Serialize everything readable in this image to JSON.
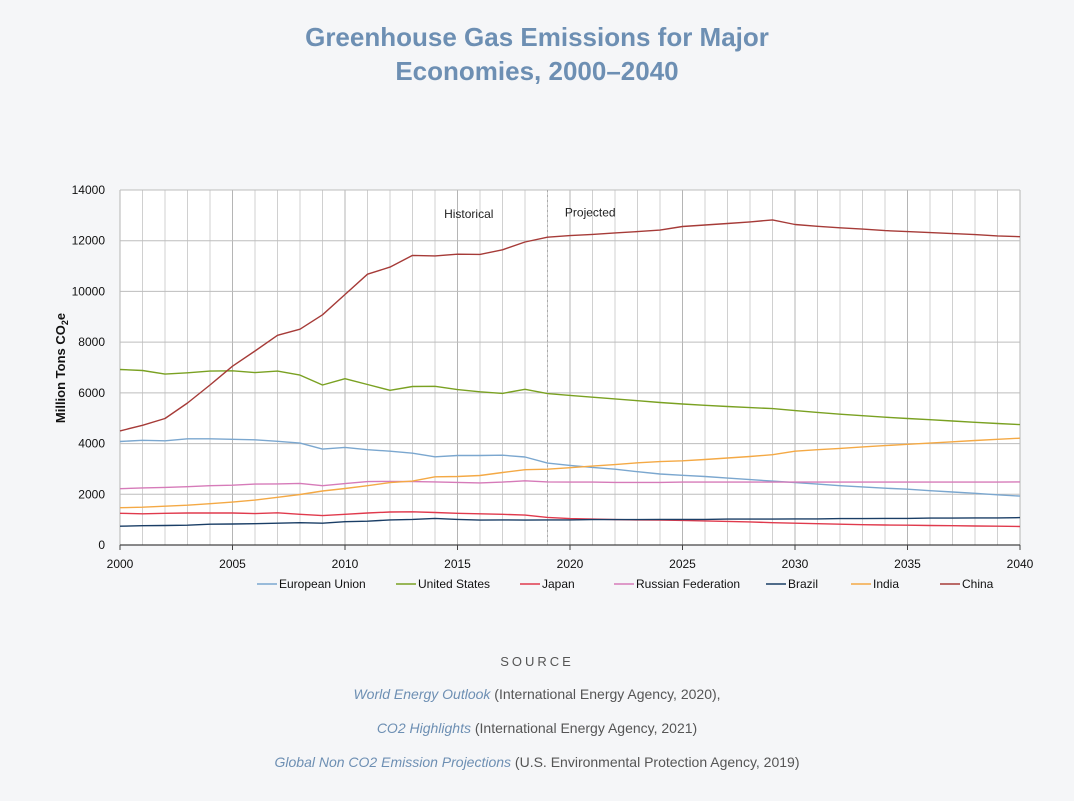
{
  "title_line1": "Greenhouse Gas Emissions for Major",
  "title_line2": "Economies, 2000–2040",
  "chart_data": {
    "type": "line",
    "ylabel_main": "Million Tons CO",
    "ylabel_sub": "2",
    "ylabel_tail": "e",
    "xlim": [
      2000,
      2040
    ],
    "ylim": [
      0,
      14000
    ],
    "yticks": [
      0,
      2000,
      4000,
      6000,
      8000,
      10000,
      12000,
      14000
    ],
    "xticks": [
      2000,
      2005,
      2010,
      2015,
      2020,
      2025,
      2030,
      2035,
      2040
    ],
    "grid": true,
    "legend_position": "bottom",
    "annotations": [
      {
        "text": "Historical",
        "x": 2015.5,
        "y": 12900
      },
      {
        "text": "Projected",
        "x": 2020.9,
        "y": 12950
      }
    ],
    "divider_x": 2019,
    "x": [
      2000,
      2001,
      2002,
      2003,
      2004,
      2005,
      2006,
      2007,
      2008,
      2009,
      2010,
      2011,
      2012,
      2013,
      2014,
      2015,
      2016,
      2017,
      2018,
      2019,
      2020,
      2021,
      2022,
      2023,
      2024,
      2025,
      2026,
      2027,
      2028,
      2029,
      2030,
      2031,
      2032,
      2033,
      2034,
      2035,
      2036,
      2037,
      2038,
      2039,
      2040
    ],
    "series": [
      {
        "name": "European Union",
        "color": "#7ba7cf",
        "values": [
          4080,
          4130,
          4110,
          4190,
          4190,
          4170,
          4150,
          4090,
          4020,
          3780,
          3850,
          3760,
          3700,
          3620,
          3480,
          3530,
          3530,
          3540,
          3470,
          3230,
          3140,
          3060,
          2990,
          2890,
          2800,
          2750,
          2700,
          2640,
          2580,
          2520,
          2460,
          2400,
          2340,
          2290,
          2240,
          2200,
          2140,
          2090,
          2040,
          1980,
          1930
        ]
      },
      {
        "name": "United States",
        "color": "#7aa122",
        "values": [
          6920,
          6880,
          6740,
          6790,
          6860,
          6870,
          6800,
          6860,
          6700,
          6310,
          6560,
          6330,
          6100,
          6250,
          6260,
          6130,
          6040,
          5980,
          6140,
          5970,
          5900,
          5830,
          5760,
          5690,
          5620,
          5560,
          5510,
          5460,
          5420,
          5380,
          5300,
          5230,
          5160,
          5100,
          5040,
          4990,
          4940,
          4890,
          4840,
          4790,
          4750
        ]
      },
      {
        "name": "Japan",
        "color": "#e03a4d",
        "values": [
          1250,
          1230,
          1250,
          1260,
          1260,
          1260,
          1240,
          1270,
          1210,
          1160,
          1210,
          1260,
          1300,
          1310,
          1280,
          1250,
          1230,
          1210,
          1180,
          1090,
          1040,
          1020,
          1000,
          990,
          980,
          970,
          950,
          930,
          910,
          880,
          860,
          840,
          820,
          800,
          790,
          780,
          770,
          760,
          750,
          740,
          730
        ]
      },
      {
        "name": "Russian Federation",
        "color": "#d67bb9",
        "values": [
          2220,
          2250,
          2270,
          2300,
          2340,
          2360,
          2400,
          2410,
          2430,
          2340,
          2420,
          2500,
          2510,
          2500,
          2490,
          2470,
          2450,
          2480,
          2530,
          2490,
          2480,
          2480,
          2470,
          2470,
          2470,
          2480,
          2480,
          2480,
          2480,
          2480,
          2480,
          2480,
          2480,
          2480,
          2480,
          2480,
          2480,
          2480,
          2480,
          2480,
          2490
        ]
      },
      {
        "name": "Brazil",
        "color": "#1a3e66",
        "values": [
          740,
          760,
          770,
          780,
          820,
          830,
          840,
          860,
          880,
          860,
          920,
          940,
          990,
          1010,
          1050,
          1010,
          980,
          990,
          980,
          990,
          990,
          1000,
          1000,
          1000,
          1010,
          1010,
          1010,
          1020,
          1020,
          1020,
          1030,
          1030,
          1040,
          1040,
          1050,
          1050,
          1060,
          1060,
          1070,
          1070,
          1080
        ]
      },
      {
        "name": "India",
        "color": "#f4a945",
        "values": [
          1470,
          1490,
          1530,
          1570,
          1630,
          1690,
          1770,
          1880,
          1990,
          2130,
          2230,
          2340,
          2460,
          2520,
          2690,
          2700,
          2740,
          2860,
          2970,
          2990,
          3050,
          3110,
          3170,
          3240,
          3290,
          3320,
          3370,
          3430,
          3490,
          3560,
          3700,
          3760,
          3810,
          3870,
          3920,
          3970,
          4020,
          4070,
          4120,
          4170,
          4210
        ]
      },
      {
        "name": "China",
        "color": "#a63b38",
        "values": [
          4500,
          4720,
          4990,
          5600,
          6310,
          7050,
          7650,
          8270,
          8510,
          9080,
          9880,
          10680,
          10960,
          11420,
          11400,
          11470,
          11460,
          11640,
          11950,
          12140,
          12200,
          12250,
          12310,
          12360,
          12420,
          12560,
          12620,
          12680,
          12740,
          12820,
          12640,
          12570,
          12510,
          12460,
          12400,
          12360,
          12320,
          12280,
          12240,
          12190,
          12160
        ]
      }
    ]
  },
  "source": {
    "heading": "SOURCE",
    "line1_italic": "World Energy Outlook",
    "line1_rest": " (International Energy Agency, 2020),",
    "line2_italic": "CO2 Highlights",
    "line2_rest": " (International Energy Agency, 2021)",
    "line3_italic": "Global Non CO2 Emission Projections",
    "line3_rest": " (U.S. Environmental Protection Agency, 2019)"
  }
}
